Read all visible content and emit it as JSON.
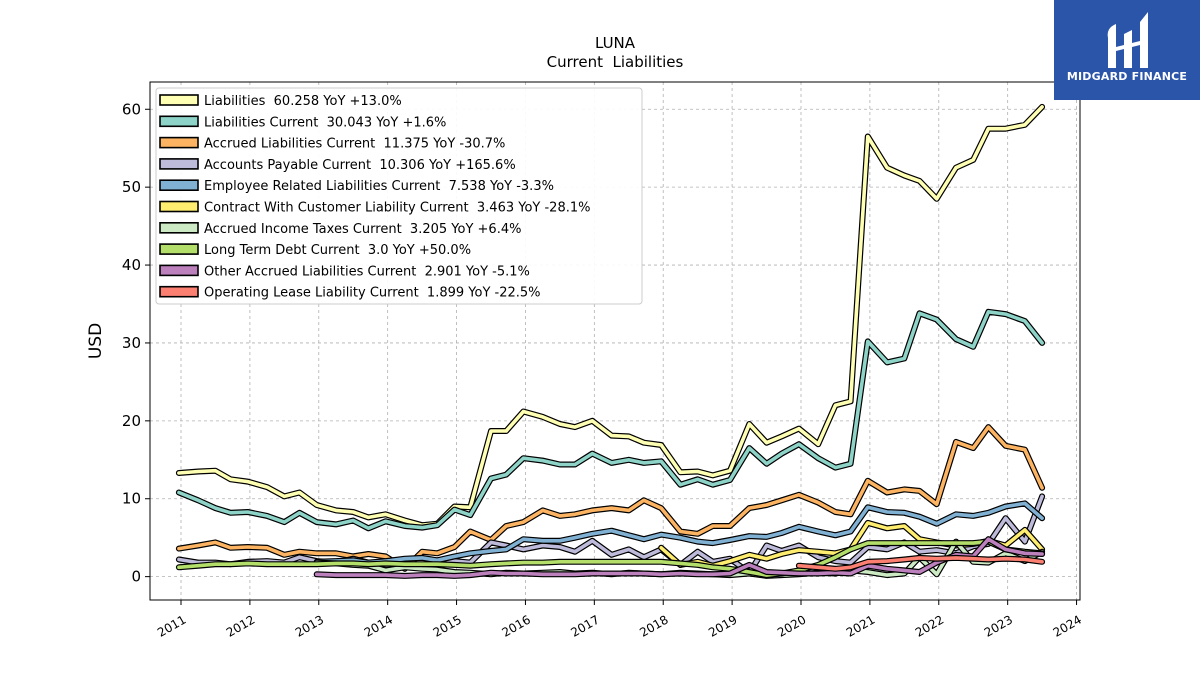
{
  "logo": {
    "text": "MIDGARD FINANCE"
  },
  "chart_data": {
    "type": "line",
    "title": "LUNA",
    "subtitle": "Current  Liabilities",
    "xlabel": "",
    "ylabel": "USD",
    "xlim": [
      2010.55,
      2024.05
    ],
    "ylim": [
      -3,
      63.5
    ],
    "yticks": [
      0,
      10,
      20,
      30,
      40,
      50,
      60
    ],
    "xticks": [
      2011,
      2012,
      2013,
      2014,
      2015,
      2016,
      2017,
      2018,
      2019,
      2020,
      2021,
      2022,
      2023,
      2024
    ],
    "grid": true,
    "legend_position": "top-left",
    "series": [
      {
        "name": "Liabilities",
        "legend": "Liabilities  60.258 YoY +13.0%",
        "color": "#ffffb3",
        "x": [
          2010.97,
          2011.25,
          2011.5,
          2011.72,
          2011.97,
          2012.25,
          2012.5,
          2012.72,
          2012.97,
          2013.25,
          2013.5,
          2013.72,
          2013.97,
          2014.25,
          2014.5,
          2014.72,
          2014.97,
          2015.2,
          2015.5,
          2015.72,
          2015.97,
          2016.25,
          2016.5,
          2016.72,
          2016.97,
          2017.25,
          2017.5,
          2017.72,
          2017.97,
          2018.25,
          2018.5,
          2018.72,
          2018.97,
          2019.25,
          2019.5,
          2019.72,
          2019.97,
          2020.25,
          2020.5,
          2020.72,
          2020.97,
          2021.25,
          2021.5,
          2021.72,
          2021.97,
          2022.25,
          2022.5,
          2022.72,
          2022.97,
          2023.25,
          2023.5
        ],
        "y": [
          13.3,
          13.5,
          13.6,
          12.5,
          12.2,
          11.5,
          10.3,
          10.8,
          9.2,
          8.5,
          8.3,
          7.6,
          8.0,
          7.2,
          6.6,
          6.8,
          9.0,
          8.9,
          18.7,
          18.7,
          21.2,
          20.5,
          19.6,
          19.2,
          20.0,
          18.1,
          18.0,
          17.2,
          16.9,
          13.4,
          13.5,
          13.0,
          13.6,
          19.6,
          17.2,
          18.0,
          19.0,
          17.0,
          22.0,
          22.5,
          56.5,
          52.5,
          51.5,
          50.8,
          48.5,
          52.5,
          53.5,
          57.5,
          57.5,
          58.0,
          60.3
        ]
      },
      {
        "name": "Liabilities Current",
        "legend": "Liabilities Current  30.043 YoY +1.6%",
        "color": "#8dd3c7",
        "x": [
          2010.97,
          2011.25,
          2011.5,
          2011.72,
          2011.97,
          2012.25,
          2012.5,
          2012.72,
          2012.97,
          2013.25,
          2013.5,
          2013.72,
          2013.97,
          2014.25,
          2014.5,
          2014.72,
          2014.97,
          2015.2,
          2015.5,
          2015.72,
          2015.97,
          2016.25,
          2016.5,
          2016.72,
          2016.97,
          2017.25,
          2017.5,
          2017.72,
          2017.97,
          2018.25,
          2018.5,
          2018.72,
          2018.97,
          2019.25,
          2019.5,
          2019.72,
          2019.97,
          2020.25,
          2020.5,
          2020.72,
          2020.97,
          2021.25,
          2021.5,
          2021.72,
          2021.97,
          2022.25,
          2022.5,
          2022.72,
          2022.97,
          2023.25,
          2023.5
        ],
        "y": [
          10.8,
          9.8,
          8.8,
          8.2,
          8.3,
          7.8,
          7.0,
          8.2,
          7.0,
          6.7,
          7.2,
          6.2,
          7.1,
          6.5,
          6.3,
          6.6,
          8.6,
          7.9,
          12.6,
          13.1,
          15.2,
          14.9,
          14.4,
          14.4,
          15.8,
          14.6,
          15.0,
          14.6,
          14.8,
          11.8,
          12.5,
          11.8,
          12.4,
          16.5,
          14.5,
          15.8,
          17.0,
          15.2,
          14.0,
          14.5,
          30.2,
          27.5,
          28.0,
          33.8,
          33.0,
          30.5,
          29.5,
          34.0,
          33.7,
          32.8,
          30.0
        ]
      },
      {
        "name": "Accrued Liabilities Current",
        "legend": "Accrued Liabilities Current  11.375 YoY -30.7%",
        "color": "#fdb462",
        "x": [
          2010.97,
          2011.25,
          2011.5,
          2011.72,
          2011.97,
          2012.25,
          2012.5,
          2012.72,
          2012.97,
          2013.25,
          2013.5,
          2013.72,
          2013.97,
          2014.25,
          2014.5,
          2014.72,
          2014.97,
          2015.2,
          2015.5,
          2015.72,
          2015.97,
          2016.25,
          2016.5,
          2016.72,
          2016.97,
          2017.25,
          2017.5,
          2017.72,
          2017.97,
          2018.25,
          2018.5,
          2018.72,
          2018.97,
          2019.25,
          2019.5,
          2019.72,
          2019.97,
          2020.25,
          2020.5,
          2020.72,
          2020.97,
          2021.25,
          2021.5,
          2021.72,
          2021.97,
          2022.25,
          2022.5,
          2022.72,
          2022.97,
          2023.25,
          2023.5
        ],
        "y": [
          3.6,
          4.0,
          4.4,
          3.7,
          3.8,
          3.7,
          2.8,
          3.2,
          3.0,
          3.0,
          2.6,
          2.9,
          2.6,
          1.0,
          3.2,
          3.0,
          3.8,
          5.8,
          4.7,
          6.5,
          7.0,
          8.5,
          7.8,
          8.0,
          8.5,
          8.8,
          8.5,
          9.8,
          8.8,
          5.8,
          5.5,
          6.5,
          6.5,
          8.8,
          9.2,
          9.8,
          10.5,
          9.5,
          8.3,
          8.0,
          12.3,
          10.8,
          11.2,
          11.0,
          9.3,
          17.3,
          16.5,
          19.2,
          16.8,
          16.3,
          11.4
        ]
      },
      {
        "name": "Accounts Payable Current",
        "legend": "Accounts Payable Current  10.306 YoY +165.6%",
        "color": "#bebada",
        "x": [
          2010.97,
          2011.25,
          2011.5,
          2011.72,
          2011.97,
          2012.25,
          2012.5,
          2012.72,
          2012.97,
          2013.25,
          2013.5,
          2013.72,
          2013.97,
          2014.25,
          2014.5,
          2014.72,
          2014.97,
          2015.2,
          2015.5,
          2015.72,
          2015.97,
          2016.25,
          2016.5,
          2016.72,
          2016.97,
          2017.25,
          2017.5,
          2017.72,
          2017.97,
          2018.25,
          2018.5,
          2018.72,
          2018.97,
          2019.25,
          2019.5,
          2019.72,
          2019.97,
          2020.25,
          2020.5,
          2020.72,
          2020.97,
          2021.25,
          2021.5,
          2021.72,
          2021.97,
          2022.25,
          2022.5,
          2022.72,
          2022.97,
          2023.25,
          2023.5
        ],
        "y": [
          2.2,
          1.8,
          1.8,
          1.6,
          1.9,
          2.0,
          1.8,
          2.5,
          2.0,
          1.8,
          2.3,
          1.8,
          1.5,
          1.6,
          1.4,
          1.5,
          2.0,
          1.8,
          4.4,
          4.0,
          3.5,
          4.0,
          3.8,
          3.2,
          4.6,
          2.8,
          3.5,
          2.5,
          3.5,
          1.5,
          3.2,
          1.9,
          2.3,
          0.5,
          4.0,
          3.3,
          4.0,
          2.5,
          2.0,
          1.8,
          3.8,
          3.5,
          4.4,
          3.2,
          3.4,
          3.0,
          3.9,
          4.2,
          7.5,
          4.5,
          10.3
        ]
      },
      {
        "name": "Employee Related Liabilities Current",
        "legend": "Employee Related Liabilities Current  7.538 YoY -3.3%",
        "color": "#80b1d3",
        "x": [
          2012.97,
          2013.25,
          2013.5,
          2013.72,
          2013.97,
          2014.25,
          2014.5,
          2014.72,
          2014.97,
          2015.2,
          2015.5,
          2015.72,
          2015.97,
          2016.25,
          2016.5,
          2016.72,
          2016.97,
          2017.25,
          2017.5,
          2017.72,
          2017.97,
          2018.25,
          2018.5,
          2018.72,
          2018.97,
          2019.25,
          2019.5,
          2019.72,
          2019.97,
          2020.25,
          2020.5,
          2020.72,
          2020.97,
          2021.25,
          2021.5,
          2021.72,
          2021.97,
          2022.25,
          2022.5,
          2022.72,
          2022.97,
          2023.25,
          2023.5
        ],
        "y": [
          1.9,
          2.0,
          2.1,
          1.8,
          2.0,
          2.3,
          2.4,
          2.1,
          2.6,
          3.0,
          3.3,
          3.5,
          4.8,
          4.6,
          4.6,
          5.0,
          5.5,
          5.9,
          5.3,
          4.8,
          5.4,
          5.0,
          4.5,
          4.3,
          4.7,
          5.2,
          5.1,
          5.6,
          6.4,
          5.8,
          5.3,
          5.8,
          8.9,
          8.3,
          8.2,
          7.7,
          6.8,
          8.0,
          7.8,
          8.2,
          9.0,
          9.4,
          7.5
        ]
      },
      {
        "name": "Contract With Customer Liability Current",
        "legend": "Contract With Customer Liability Current  3.463 YoY -28.1%",
        "color": "#ffed6f",
        "x": [
          2017.97,
          2018.25,
          2018.5,
          2018.72,
          2018.97,
          2019.25,
          2019.5,
          2019.72,
          2019.97,
          2020.25,
          2020.5,
          2020.72,
          2020.97,
          2021.25,
          2021.5,
          2021.72,
          2021.97,
          2022.25,
          2022.5,
          2022.72,
          2022.97,
          2023.25,
          2023.5
        ],
        "y": [
          3.7,
          1.5,
          1.9,
          1.4,
          2.0,
          2.8,
          2.3,
          2.9,
          3.4,
          3.2,
          3.0,
          3.5,
          6.9,
          6.2,
          6.5,
          4.8,
          4.4,
          4.0,
          4.2,
          4.6,
          4.0,
          6.0,
          3.5
        ]
      },
      {
        "name": "Accrued Income Taxes Current",
        "legend": "Accrued Income Taxes Current  3.205 YoY +6.4%",
        "color": "#ccebc5",
        "x": [
          2012.97,
          2013.25,
          2013.5,
          2013.72,
          2013.97,
          2014.25,
          2014.5,
          2014.72,
          2014.97,
          2015.2,
          2015.5,
          2015.72,
          2015.97,
          2016.25,
          2016.5,
          2016.72,
          2016.97,
          2017.25,
          2017.5,
          2017.72,
          2017.97,
          2018.25,
          2018.5,
          2018.72,
          2018.97,
          2019.25,
          2019.5,
          2019.72,
          2019.97,
          2020.25,
          2020.5,
          2020.72,
          2020.97,
          2021.25,
          2021.5,
          2021.72,
          2021.97,
          2022.25,
          2022.5,
          2022.72,
          2022.97,
          2023.25,
          2023.5
        ],
        "y": [
          1.8,
          1.7,
          1.5,
          1.4,
          0.8,
          1.2,
          1.0,
          0.9,
          0.6,
          0.5,
          0.3,
          0.5,
          0.4,
          0.5,
          0.6,
          0.4,
          0.5,
          0.3,
          0.5,
          0.4,
          0.3,
          0.5,
          0.4,
          0.3,
          0.2,
          0.4,
          0.1,
          0.2,
          0.3,
          0.5,
          0.4,
          0.8,
          0.6,
          0.2,
          0.4,
          2.5,
          0.3,
          4.5,
          1.9,
          1.8,
          3.0,
          2.0,
          3.2
        ]
      },
      {
        "name": "Long Term Debt Current",
        "legend": "Long Term Debt Current  3.0 YoY +50.0%",
        "color": "#b3de69",
        "x": [
          2010.97,
          2011.25,
          2011.5,
          2011.72,
          2011.97,
          2012.25,
          2012.5,
          2012.72,
          2012.97,
          2013.25,
          2013.5,
          2013.72,
          2013.97,
          2014.25,
          2014.5,
          2014.72,
          2014.97,
          2015.2,
          2015.5,
          2015.72,
          2015.97,
          2016.25,
          2016.5,
          2016.72,
          2016.97,
          2017.25,
          2017.5,
          2017.72,
          2017.97,
          2018.25,
          2018.5,
          2018.72,
          2018.97,
          2019.25,
          2019.5,
          2019.72,
          2019.97,
          2020.25,
          2020.5,
          2020.72,
          2020.97,
          2021.25,
          2021.5,
          2021.72,
          2021.97,
          2022.25,
          2022.5,
          2022.72,
          2022.97,
          2023.25,
          2023.5
        ],
        "y": [
          1.2,
          1.4,
          1.6,
          1.6,
          1.7,
          1.6,
          1.6,
          1.6,
          1.6,
          1.7,
          1.7,
          1.6,
          1.7,
          1.6,
          1.6,
          1.6,
          1.5,
          1.4,
          1.6,
          1.7,
          1.8,
          1.8,
          1.9,
          1.9,
          1.9,
          1.9,
          1.9,
          1.9,
          1.9,
          1.7,
          1.5,
          1.2,
          1.0,
          0.6,
          0.2,
          0.4,
          0.8,
          1.5,
          2.5,
          3.5,
          4.3,
          4.3,
          4.3,
          4.3,
          4.3,
          4.3,
          4.3,
          4.5,
          3.5,
          3.2,
          3.0
        ]
      },
      {
        "name": "Other Accrued Liabilities Current",
        "legend": "Other Accrued Liabilities Current  2.901 YoY -5.1%",
        "color": "#bc80bd",
        "x": [
          2012.97,
          2013.25,
          2013.5,
          2013.72,
          2013.97,
          2014.25,
          2014.5,
          2014.72,
          2014.97,
          2015.2,
          2015.5,
          2015.72,
          2015.97,
          2016.25,
          2016.5,
          2016.72,
          2016.97,
          2017.25,
          2017.5,
          2017.72,
          2017.97,
          2018.25,
          2018.5,
          2018.72,
          2018.97,
          2019.25,
          2019.5,
          2019.72,
          2019.97,
          2020.25,
          2020.5,
          2020.72,
          2020.97,
          2021.25,
          2021.5,
          2021.72,
          2021.97,
          2022.25,
          2022.5,
          2022.72,
          2022.97,
          2023.25,
          2023.5
        ],
        "y": [
          0.3,
          0.2,
          0.2,
          0.2,
          0.2,
          0.1,
          0.2,
          0.2,
          0.1,
          0.2,
          0.5,
          0.4,
          0.4,
          0.3,
          0.3,
          0.3,
          0.4,
          0.4,
          0.4,
          0.4,
          0.3,
          0.4,
          0.3,
          0.3,
          0.4,
          1.5,
          0.6,
          0.5,
          0.4,
          0.4,
          0.5,
          0.4,
          1.4,
          1.0,
          0.8,
          0.6,
          1.8,
          2.8,
          2.6,
          4.8,
          3.5,
          3.0,
          2.9
        ]
      },
      {
        "name": "Operating Lease Liability Current",
        "legend": "Operating Lease Liability Current  1.899 YoY -22.5%",
        "color": "#fb8072",
        "x": [
          2019.97,
          2020.25,
          2020.5,
          2020.72,
          2020.97,
          2021.25,
          2021.5,
          2021.72,
          2021.97,
          2022.25,
          2022.5,
          2022.72,
          2022.97,
          2023.25,
          2023.5
        ],
        "y": [
          1.4,
          1.2,
          1.0,
          1.2,
          1.9,
          2.0,
          2.2,
          2.4,
          2.3,
          2.4,
          2.3,
          2.2,
          2.3,
          2.2,
          1.9
        ]
      }
    ]
  }
}
